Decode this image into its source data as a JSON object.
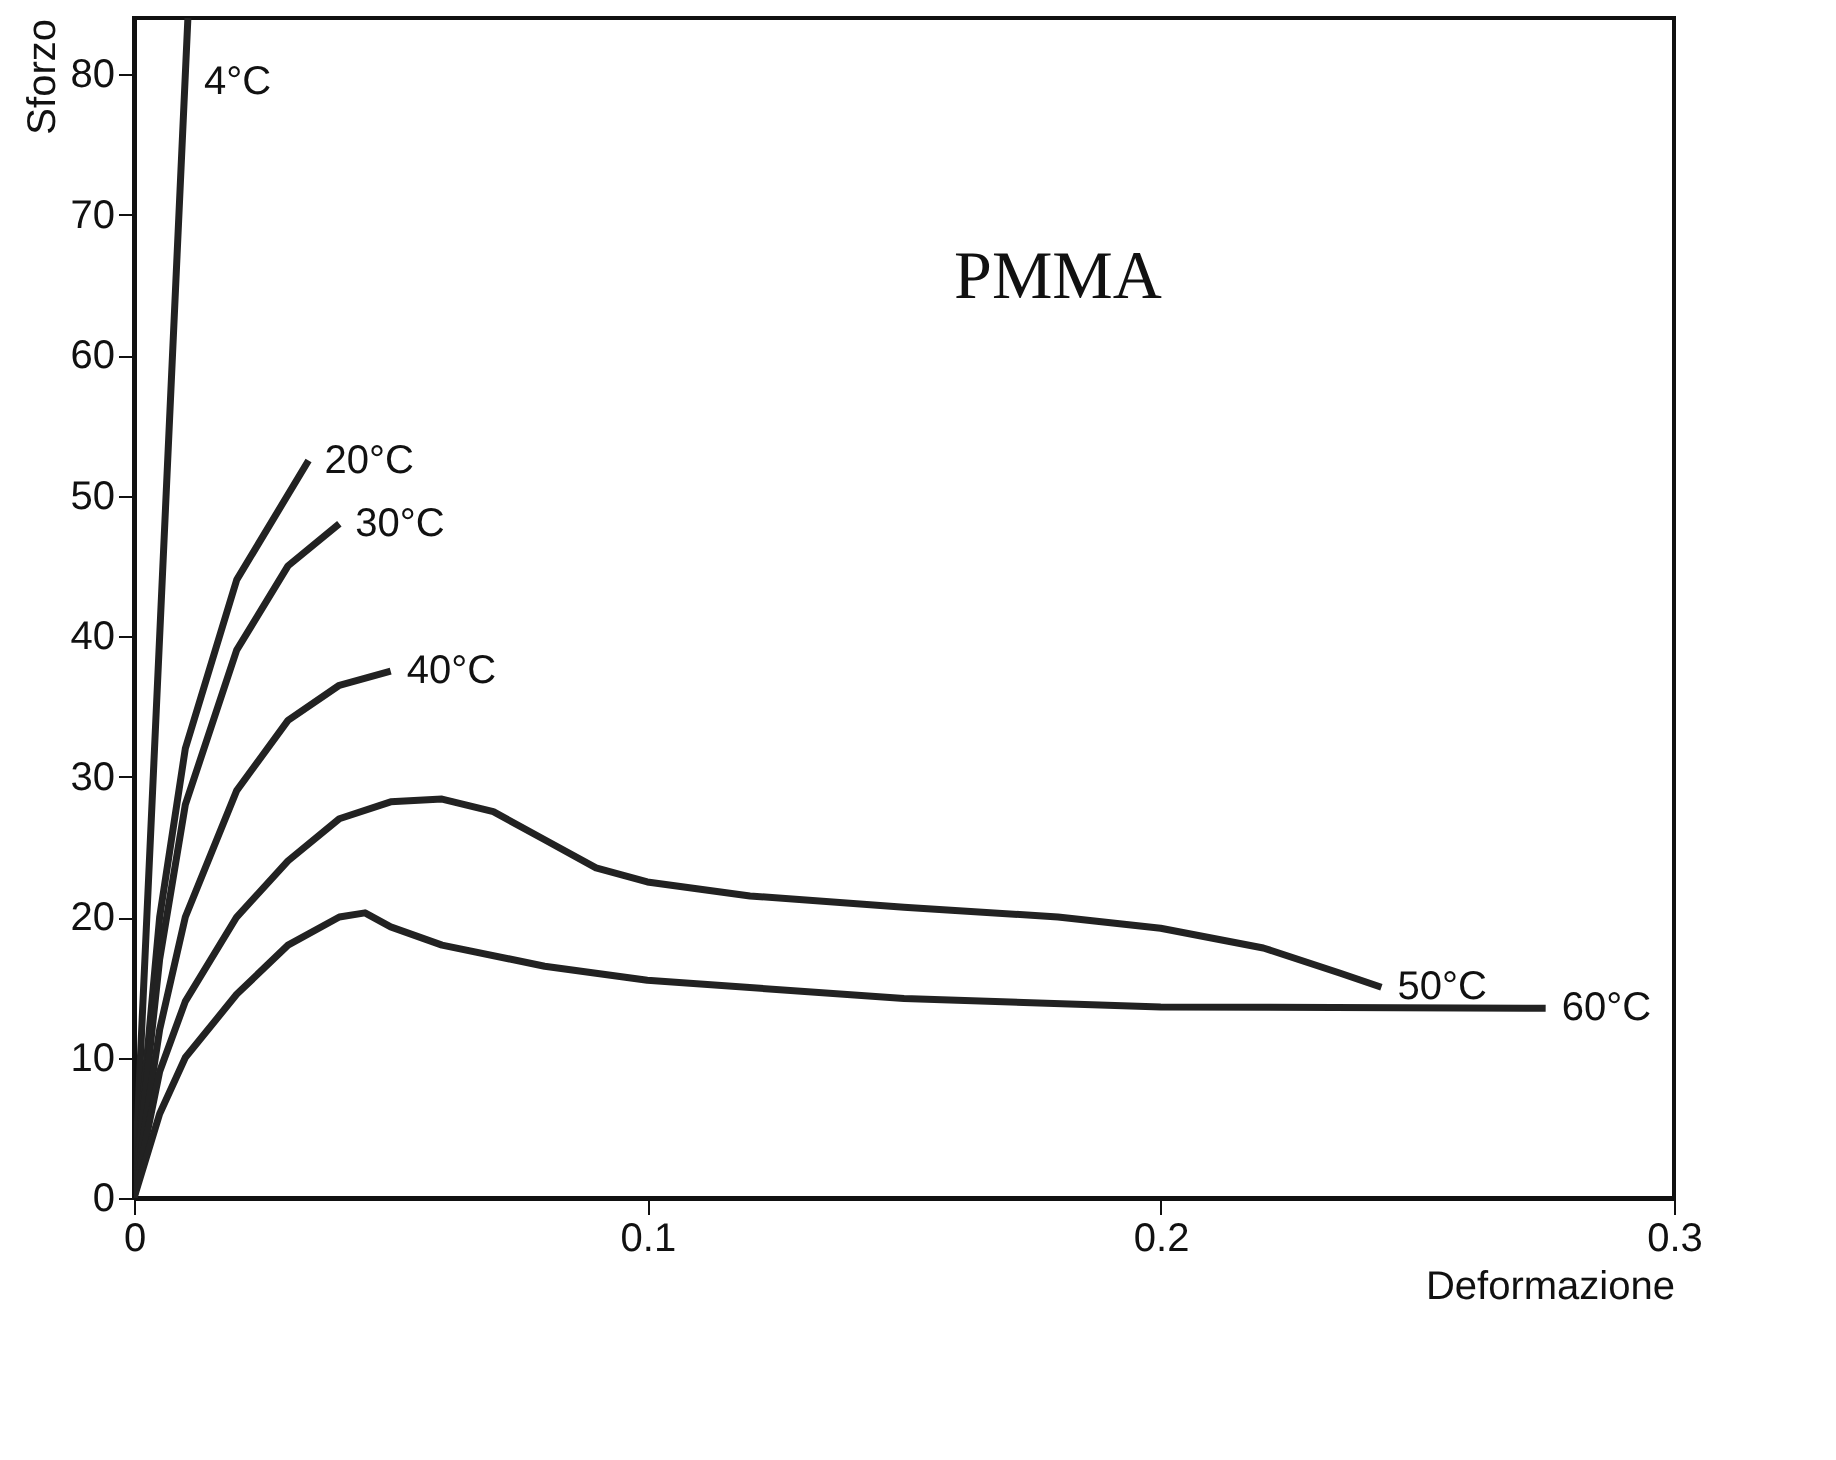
{
  "chart_data": {
    "type": "line",
    "xlabel": "Deformazione",
    "ylabel": "Sforzo",
    "xlim": [
      0,
      0.3
    ],
    "ylim": [
      0,
      84
    ],
    "xticks": [
      0,
      0.1,
      0.2,
      0.3
    ],
    "yticks": [
      0,
      10,
      20,
      30,
      40,
      50,
      60,
      70,
      80
    ],
    "grid": false,
    "marker": "none",
    "line_style": "solid",
    "annotations": [
      "PMMA"
    ],
    "series": [
      {
        "name": "4°C",
        "color": "#222222",
        "x": [
          0,
          0.005,
          0.0105
        ],
        "values": [
          0,
          40,
          84
        ]
      },
      {
        "name": "20°C",
        "color": "#222222",
        "x": [
          0,
          0.005,
          0.01,
          0.02,
          0.034
        ],
        "values": [
          0,
          20,
          32,
          44,
          52.5
        ]
      },
      {
        "name": "30°C",
        "color": "#222222",
        "x": [
          0,
          0.005,
          0.01,
          0.02,
          0.03,
          0.04
        ],
        "values": [
          0,
          17,
          28,
          39,
          45,
          48
        ]
      },
      {
        "name": "40°C",
        "color": "#222222",
        "x": [
          0,
          0.005,
          0.01,
          0.02,
          0.03,
          0.04,
          0.05
        ],
        "values": [
          0,
          12,
          20,
          29,
          34,
          36.5,
          37.5
        ]
      },
      {
        "name": "50°C",
        "color": "#222222",
        "x": [
          0,
          0.005,
          0.01,
          0.02,
          0.03,
          0.04,
          0.05,
          0.06,
          0.07,
          0.08,
          0.09,
          0.1,
          0.12,
          0.15,
          0.18,
          0.2,
          0.22,
          0.235,
          0.243
        ],
        "values": [
          0,
          9,
          14,
          20,
          24,
          27,
          28.2,
          28.4,
          27.5,
          25.5,
          23.5,
          22.5,
          21.5,
          20.7,
          20,
          19.2,
          17.8,
          16,
          15
        ]
      },
      {
        "name": "60°C",
        "color": "#222222",
        "x": [
          0,
          0.005,
          0.01,
          0.02,
          0.03,
          0.04,
          0.045,
          0.05,
          0.06,
          0.08,
          0.1,
          0.15,
          0.2,
          0.275
        ],
        "values": [
          0,
          6,
          10,
          14.5,
          18,
          20,
          20.3,
          19.3,
          18,
          16.5,
          15.5,
          14.2,
          13.6,
          13.5
        ]
      }
    ]
  }
}
